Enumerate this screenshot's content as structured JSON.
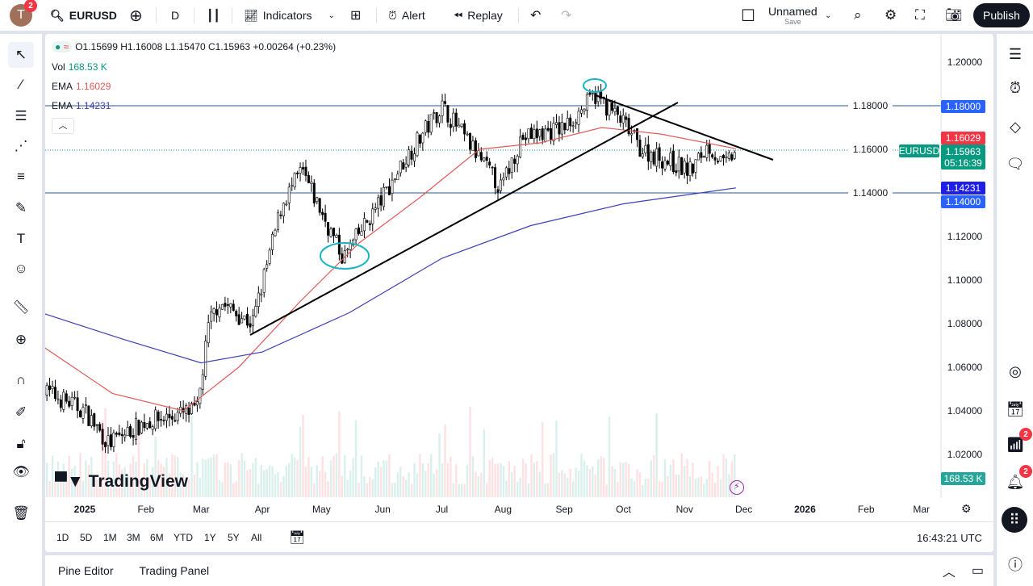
{
  "topbar": {
    "avatar_letter": "T",
    "notif_count": "2",
    "symbol": "EURUSD",
    "interval": "D",
    "indicators": "Indicators",
    "alert": "Alert",
    "replay": "Replay",
    "layout_name": "Unnamed",
    "layout_save": "Save",
    "publish": "Publish"
  },
  "legend": {
    "ohlc": "O1.15699 H1.16008 L1.15470 C1.15963 +0.00264 (+0.23%)",
    "vol_label": "Vol",
    "vol_value": "168.53 K",
    "ema1_label": "EMA",
    "ema1_value": "1.16029",
    "ema2_label": "EMA",
    "ema2_value": "1.14231"
  },
  "price_axis": {
    "ticks": [
      "1.20000",
      "1.18000",
      "1.16000",
      "1.14000",
      "1.12000",
      "1.10000",
      "1.08000",
      "1.06000",
      "1.04000",
      "1.02000"
    ],
    "labels": {
      "line_high": "1.18000",
      "ema1": "1.16029",
      "symbol": "EURUSD",
      "last": "1.15963",
      "countdown": "05:16:39",
      "ema2": "1.14231",
      "line_low": "1.14000",
      "volume": "168.53 K"
    }
  },
  "time_axis": [
    "2025",
    "Feb",
    "Mar",
    "Apr",
    "May",
    "Jun",
    "Jul",
    "Aug",
    "Sep",
    "Oct",
    "Nov",
    "Dec",
    "2026",
    "Feb",
    "Mar"
  ],
  "ranges": [
    "1D",
    "5D",
    "1M",
    "3M",
    "6M",
    "YTD",
    "1Y",
    "5Y",
    "All"
  ],
  "clock": "16:43:21 UTC",
  "bottom": {
    "pine_editor": "Pine Editor",
    "trading_panel": "Trading Panel"
  },
  "watermark": "TradingView",
  "right_badges": {
    "ideas": "2",
    "alerts": "2"
  },
  "colors": {
    "up": "#ffffff",
    "down": "#000000",
    "ema_fast": "#e05a5a",
    "ema_slow": "#3f3fb8",
    "hline": "#2962ff",
    "last": "#089981",
    "ema1_label": "#f23645",
    "ema2_label": "#1e1ee6"
  },
  "chart_data": {
    "type": "candlestick",
    "symbol": "EURUSD",
    "interval": "D",
    "ylim": [
      1.01,
      1.205
    ],
    "close_path": [
      [
        "2024-12-10",
        1.05
      ],
      [
        "2025-01-01",
        1.04
      ],
      [
        "2025-01-13",
        1.025
      ],
      [
        "2025-02-01",
        1.035
      ],
      [
        "2025-02-27",
        1.04
      ],
      [
        "2025-03-05",
        1.08
      ],
      [
        "2025-03-10",
        1.09
      ],
      [
        "2025-03-27",
        1.08
      ],
      [
        "2025-04-11",
        1.135
      ],
      [
        "2025-04-21",
        1.15
      ],
      [
        "2025-05-12",
        1.11
      ],
      [
        "2025-05-30",
        1.135
      ],
      [
        "2025-06-12",
        1.155
      ],
      [
        "2025-07-01",
        1.18
      ],
      [
        "2025-07-31",
        1.142
      ],
      [
        "2025-08-10",
        1.165
      ],
      [
        "2025-09-01",
        1.17
      ],
      [
        "2025-09-17",
        1.185
      ],
      [
        "2025-10-01",
        1.172
      ],
      [
        "2025-10-10",
        1.16
      ],
      [
        "2025-11-04",
        1.15
      ],
      [
        "2025-11-13",
        1.162
      ],
      [
        "2025-11-21",
        1.152
      ],
      [
        "2025-11-27",
        1.1596
      ]
    ],
    "ema_fast": [
      [
        "2024-12-10",
        1.07
      ],
      [
        "2025-01-15",
        1.048
      ],
      [
        "2025-02-20",
        1.04
      ],
      [
        "2025-03-20",
        1.06
      ],
      [
        "2025-04-20",
        1.09
      ],
      [
        "2025-05-20",
        1.117
      ],
      [
        "2025-06-20",
        1.138
      ],
      [
        "2025-07-20",
        1.16
      ],
      [
        "2025-08-20",
        1.163
      ],
      [
        "2025-09-20",
        1.17
      ],
      [
        "2025-10-20",
        1.167
      ],
      [
        "2025-11-27",
        1.1603
      ]
    ],
    "ema_slow": [
      [
        "2024-12-10",
        1.085
      ],
      [
        "2025-01-20",
        1.073
      ],
      [
        "2025-03-01",
        1.062
      ],
      [
        "2025-04-01",
        1.067
      ],
      [
        "2025-05-15",
        1.085
      ],
      [
        "2025-07-01",
        1.11
      ],
      [
        "2025-08-15",
        1.125
      ],
      [
        "2025-10-01",
        1.135
      ],
      [
        "2025-11-27",
        1.1423
      ]
    ],
    "horizontal_lines": [
      1.18,
      1.14
    ]
  }
}
